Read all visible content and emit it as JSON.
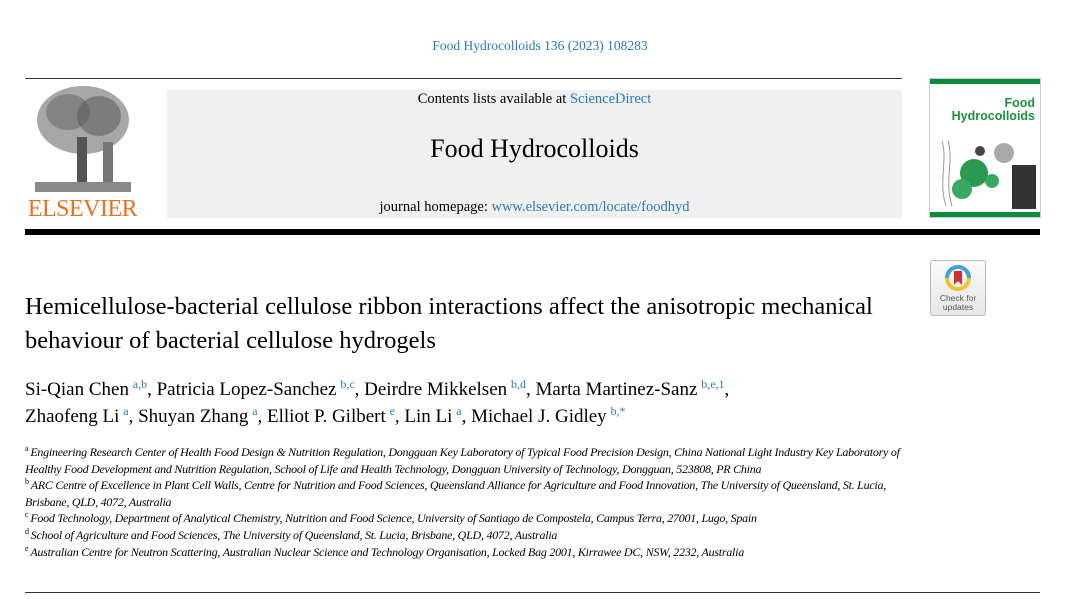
{
  "citation": "Food Hydrocolloids 136 (2023) 108283",
  "header": {
    "contents_prefix": "Contents lists available at ",
    "contents_link": "ScienceDirect",
    "journal_title": "Food Hydrocolloids",
    "homepage_prefix": "journal homepage: ",
    "homepage_link": "www.elsevier.com/locate/foodhyd",
    "publisher_logo": "ELSEVIER",
    "cover_title_line1": "Food",
    "cover_title_line2": "Hydrocolloids",
    "crossmark_line1": "Check for",
    "crossmark_line2": "updates",
    "colors": {
      "link": "#2a7ab8",
      "elsevier_orange": "#e9711c",
      "cover_green": "#1d9140"
    }
  },
  "title": "Hemicellulose-bacterial cellulose ribbon interactions affect the anisotropic mechanical behaviour of bacterial cellulose hydrogels",
  "authors": [
    {
      "name": "Si-Qian Chen",
      "aff": "a,b",
      "sep": ", "
    },
    {
      "name": "Patricia Lopez-Sanchez",
      "aff": "b,c",
      "sep": ", "
    },
    {
      "name": "Deirdre Mikkelsen",
      "aff": "b,d",
      "sep": ", "
    },
    {
      "name": "Marta Martinez-Sanz",
      "aff": "b,e,1",
      "sep": ", "
    },
    {
      "name": "Zhaofeng Li",
      "aff": "a",
      "sep": ", "
    },
    {
      "name": "Shuyan Zhang",
      "aff": "a",
      "sep": ", "
    },
    {
      "name": "Elliot P. Gilbert",
      "aff": "e",
      "sep": ", "
    },
    {
      "name": "Lin Li",
      "aff": "a",
      "sep": ", "
    },
    {
      "name": "Michael J. Gidley",
      "aff": "b,*",
      "sep": ""
    }
  ],
  "affiliations": [
    {
      "key": "a",
      "text": "Engineering Research Center of Health Food Design & Nutrition Regulation, Dongguan Key Laboratory of Typical Food Precision Design, China National Light Industry Key Laboratory of Healthy Food Development and Nutrition Regulation, School of Life and Health Technology, Dongguan University of Technology, Dongguan, 523808, PR China"
    },
    {
      "key": "b",
      "text": "ARC Centre of Excellence in Plant Cell Walls, Centre for Nutrition and Food Sciences, Queensland Alliance for Agriculture and Food Innovation, The University of Queensland, St. Lucia, Brisbane, QLD, 4072, Australia"
    },
    {
      "key": "c",
      "text": "Food Technology, Department of Analytical Chemistry, Nutrition and Food Science, University of Santiago de Compostela, Campus Terra, 27001, Lugo, Spain"
    },
    {
      "key": "d",
      "text": "School of Agriculture and Food Sciences, The University of Queensland, St. Lucia, Brisbane, QLD, 4072, Australia"
    },
    {
      "key": "e",
      "text": "Australian Centre for Neutron Scattering, Australian Nuclear Science and Technology Organisation, Locked Bag 2001, Kirrawee DC, NSW, 2232, Australia"
    }
  ]
}
